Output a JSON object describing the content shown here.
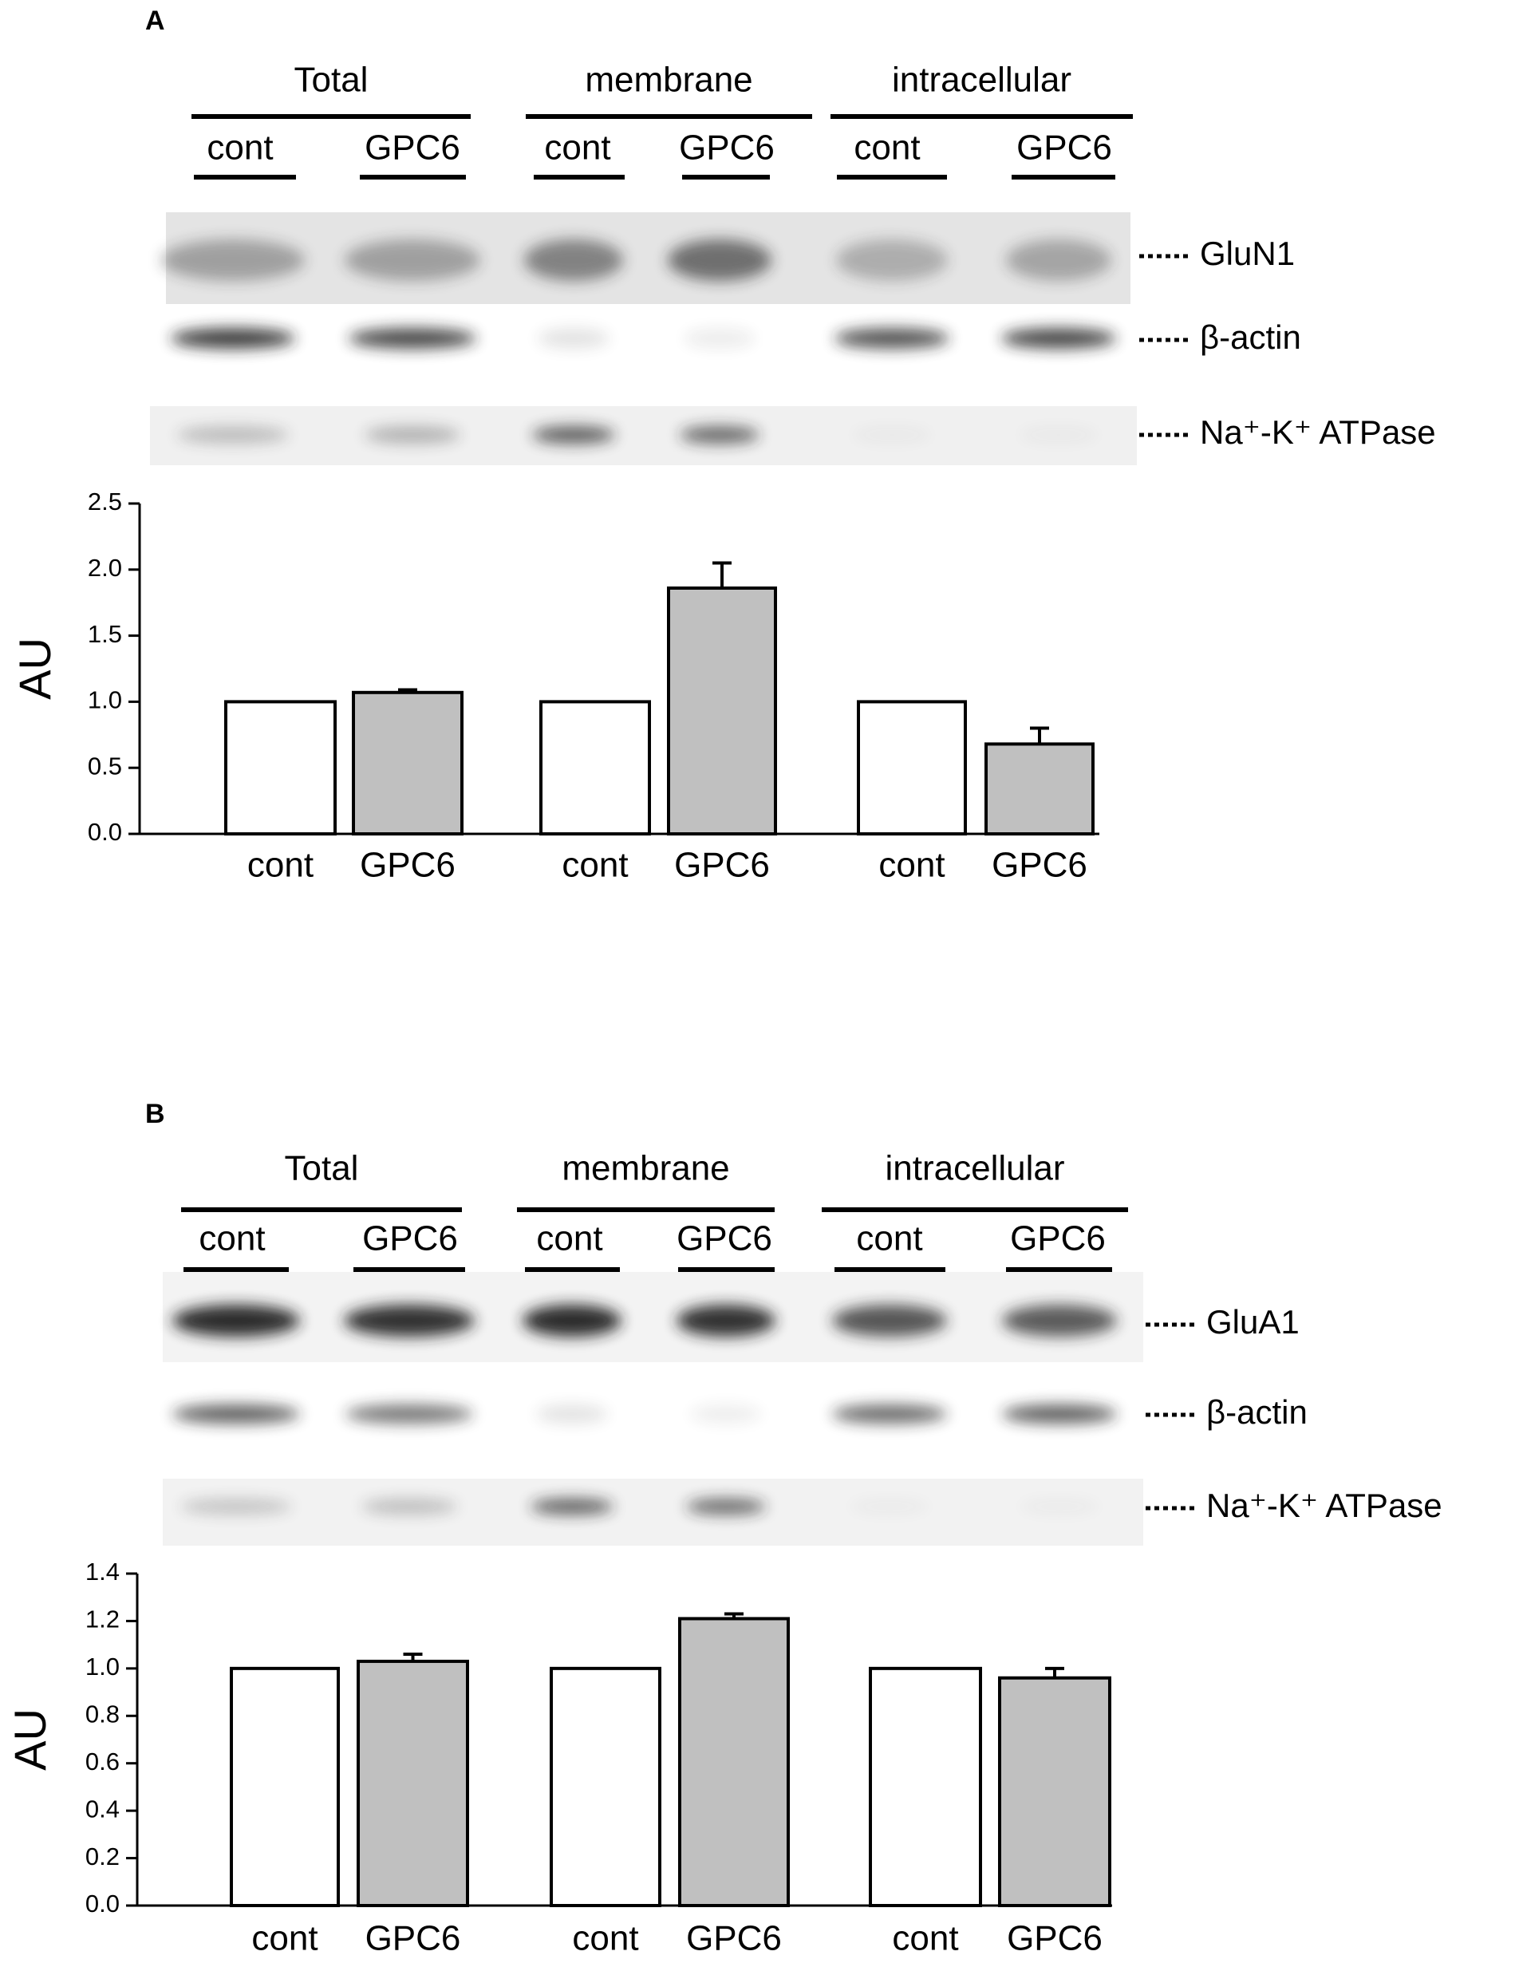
{
  "chart_data": [
    {
      "type": "bar",
      "panel_label": "A",
      "blot": {
        "groups": [
          "Total",
          "membrane",
          "intracellular"
        ],
        "lanes": [
          "cont",
          "GPC6",
          "cont",
          "GPC6",
          "cont",
          "GPC6"
        ],
        "bands": [
          "GluN1",
          "β-actin",
          "Na⁺-K⁺ ATPase"
        ]
      },
      "y_label": "AU",
      "categories": [
        "cont",
        "GPC6",
        "cont",
        "GPC6",
        "cont",
        "GPC6"
      ],
      "values": [
        1.0,
        1.07,
        1.0,
        1.86,
        1.0,
        0.68
      ],
      "errors": [
        null,
        0.02,
        null,
        0.19,
        null,
        0.12
      ],
      "colors": [
        "#ffffff",
        "#c0c0c0",
        "#ffffff",
        "#c0c0c0",
        "#ffffff",
        "#c0c0c0"
      ],
      "ylim": [
        0,
        2.5
      ],
      "yticks": [
        {
          "value": 0,
          "label": "0.0"
        },
        0.5,
        {
          "value": 1,
          "label": "1.0"
        },
        1.5,
        {
          "value": 2,
          "label": "2.0"
        },
        2.5
      ]
    },
    {
      "type": "bar",
      "panel_label": "B",
      "blot": {
        "groups": [
          "Total",
          "membrane",
          "intracellular"
        ],
        "lanes": [
          "cont",
          "GPC6",
          "cont",
          "GPC6",
          "cont",
          "GPC6"
        ],
        "bands": [
          "GluA1",
          "β-actin",
          "Na⁺-K⁺ ATPase"
        ]
      },
      "y_label": "AU",
      "categories": [
        "cont",
        "GPC6",
        "cont",
        "GPC6",
        "cont",
        "GPC6"
      ],
      "values": [
        1.0,
        1.03,
        1.0,
        1.21,
        1.0,
        0.96
      ],
      "errors": [
        null,
        0.03,
        null,
        0.02,
        null,
        0.04
      ],
      "colors": [
        "#ffffff",
        "#c0c0c0",
        "#ffffff",
        "#c0c0c0",
        "#ffffff",
        "#c0c0c0"
      ],
      "ylim": [
        0,
        1.4
      ],
      "yticks": [
        {
          "value": 0,
          "label": "0.0"
        },
        0.2,
        0.4,
        0.6,
        0.8,
        {
          "value": 1,
          "label": "1.0"
        },
        1.2,
        1.4
      ]
    }
  ]
}
